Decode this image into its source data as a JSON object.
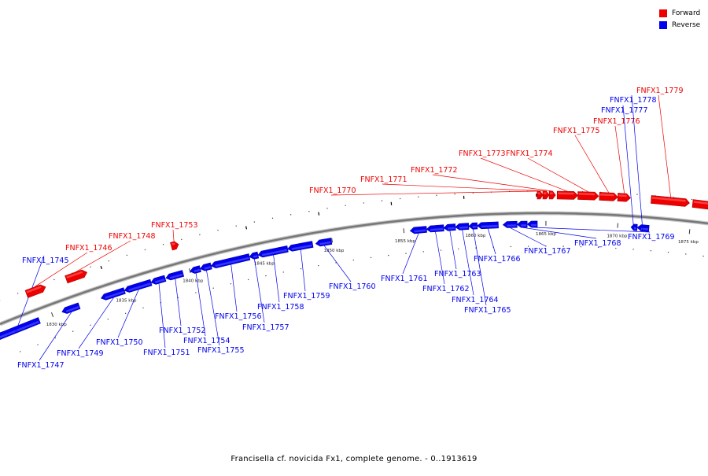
{
  "legend": [
    {
      "label": "Forward",
      "color": "#ee0000"
    },
    {
      "label": "Reverse",
      "color": "#0000ee"
    }
  ],
  "caption": "Francisella cf. novicida Fx1, complete genome. - 0..1913619",
  "scale": {
    "ticks": [
      {
        "label": "1830 kbp"
      },
      {
        "label": "1835 kbp"
      },
      {
        "label": "1840 kbp"
      },
      {
        "label": "1845 kbp"
      },
      {
        "label": "1850 kbp"
      },
      {
        "label": "1855 kbp"
      },
      {
        "label": "1860 kbp"
      },
      {
        "label": "1865 kbp"
      },
      {
        "label": "1870 kbp"
      },
      {
        "label": "1875 kbp"
      }
    ]
  },
  "genes": [
    {
      "label": "FNFX1_1745",
      "strand": "reverse"
    },
    {
      "label": "FNFX1_1746",
      "strand": "forward"
    },
    {
      "label": "FNFX1_1747",
      "strand": "reverse"
    },
    {
      "label": "FNFX1_1748",
      "strand": "forward"
    },
    {
      "label": "FNFX1_1749",
      "strand": "reverse"
    },
    {
      "label": "FNFX1_1750",
      "strand": "reverse"
    },
    {
      "label": "FNFX1_1751",
      "strand": "reverse"
    },
    {
      "label": "FNFX1_1752",
      "strand": "reverse"
    },
    {
      "label": "FNFX1_1753",
      "strand": "forward"
    },
    {
      "label": "FNFX1_1754",
      "strand": "reverse"
    },
    {
      "label": "FNFX1_1755",
      "strand": "reverse"
    },
    {
      "label": "FNFX1_1756",
      "strand": "reverse"
    },
    {
      "label": "FNFX1_1757",
      "strand": "reverse"
    },
    {
      "label": "FNFX1_1758",
      "strand": "reverse"
    },
    {
      "label": "FNFX1_1759",
      "strand": "reverse"
    },
    {
      "label": "FNFX1_1760",
      "strand": "reverse"
    },
    {
      "label": "FNFX1_1761",
      "strand": "reverse"
    },
    {
      "label": "FNFX1_1762",
      "strand": "reverse"
    },
    {
      "label": "FNFX1_1763",
      "strand": "reverse"
    },
    {
      "label": "FNFX1_1764",
      "strand": "reverse"
    },
    {
      "label": "FNFX1_1765",
      "strand": "reverse"
    },
    {
      "label": "FNFX1_1766",
      "strand": "reverse"
    },
    {
      "label": "FNFX1_1767",
      "strand": "reverse"
    },
    {
      "label": "FNFX1_1768",
      "strand": "reverse"
    },
    {
      "label": "FNFX1_1769",
      "strand": "reverse"
    },
    {
      "label": "FNFX1_1770",
      "strand": "forward"
    },
    {
      "label": "FNFX1_1771",
      "strand": "forward"
    },
    {
      "label": "FNFX1_1772",
      "strand": "forward"
    },
    {
      "label": "FNFX1_1773",
      "strand": "forward"
    },
    {
      "label": "FNFX1_1774",
      "strand": "forward"
    },
    {
      "label": "FNFX1_1775",
      "strand": "forward"
    },
    {
      "label": "FNFX1_1776",
      "strand": "forward"
    },
    {
      "label": "FNFX1_1777",
      "strand": "reverse"
    },
    {
      "label": "FNFX1_1778",
      "strand": "reverse"
    },
    {
      "label": "FNFX1_1779",
      "strand": "forward"
    }
  ]
}
